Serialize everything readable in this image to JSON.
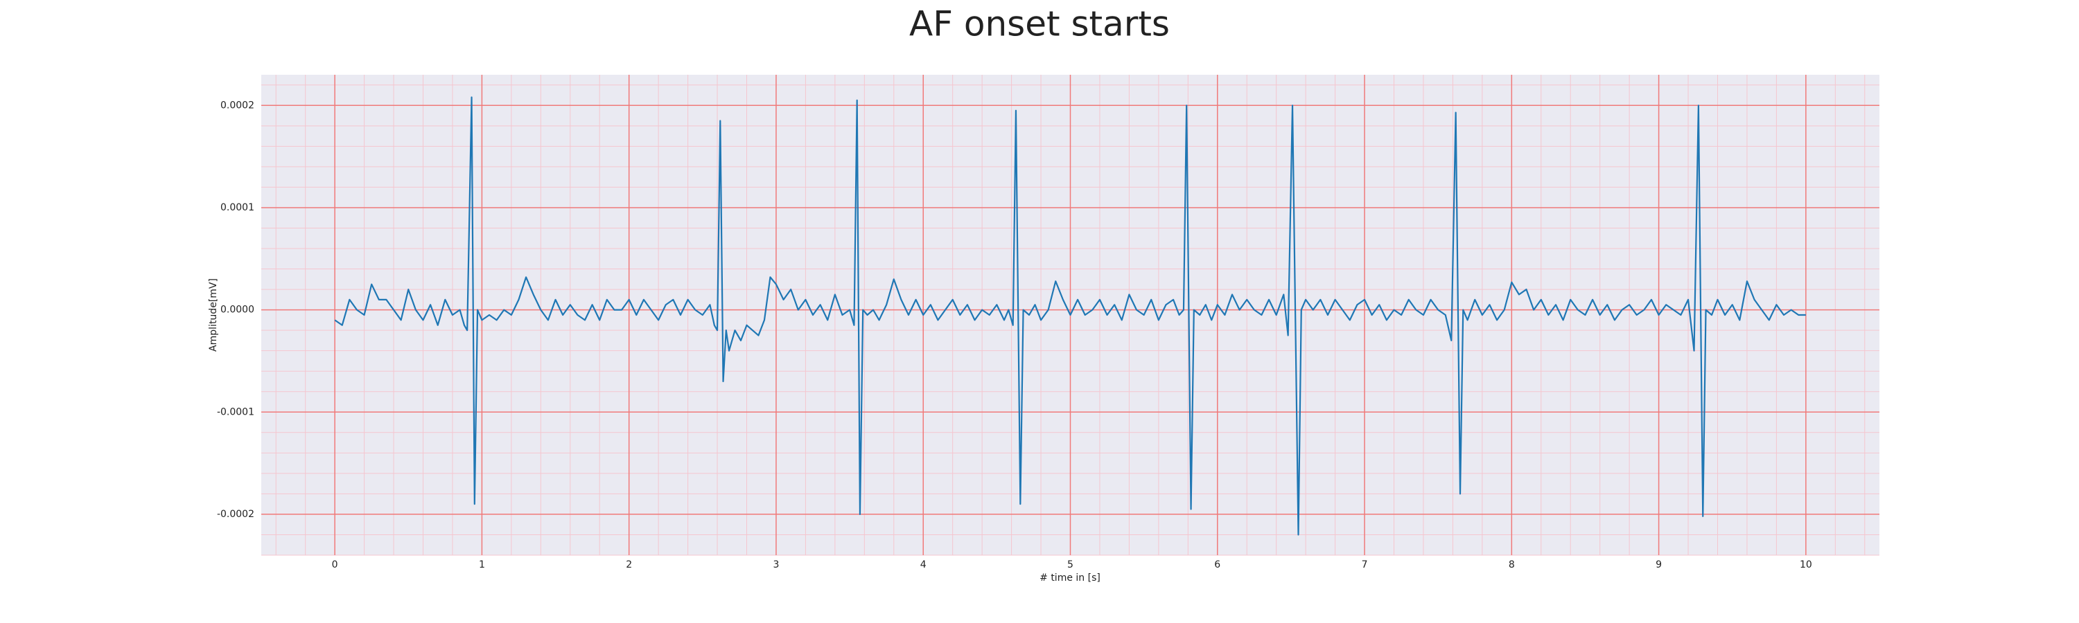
{
  "chart_data": {
    "type": "line",
    "title": "AF onset starts",
    "xlabel": "# time in [s]",
    "ylabel": "Amplitude[mV]",
    "color": "#1f77b4",
    "xlim": [
      -0.5,
      10.5
    ],
    "ylim": [
      -0.00024,
      0.00023
    ],
    "xticks": [
      0,
      1,
      2,
      3,
      4,
      5,
      6,
      7,
      8,
      9,
      10
    ],
    "yticks": [
      -0.0002,
      -0.0001,
      {
        "value": 0,
        "label": "0.0000"
      },
      0.0001,
      0.0002
    ],
    "grid": true,
    "minor_grid": true,
    "xminor_step": 0.2,
    "yminor_step": 2e-05,
    "x": [
      0.0,
      0.05,
      0.1,
      0.15,
      0.2,
      0.25,
      0.3,
      0.35,
      0.4,
      0.45,
      0.5,
      0.55,
      0.6,
      0.65,
      0.7,
      0.75,
      0.8,
      0.85,
      0.88,
      0.9,
      0.93,
      0.95,
      0.97,
      1.0,
      1.05,
      1.1,
      1.15,
      1.2,
      1.25,
      1.3,
      1.35,
      1.4,
      1.45,
      1.5,
      1.55,
      1.6,
      1.65,
      1.7,
      1.75,
      1.8,
      1.85,
      1.9,
      1.95,
      2.0,
      2.05,
      2.1,
      2.15,
      2.2,
      2.25,
      2.3,
      2.35,
      2.4,
      2.45,
      2.5,
      2.55,
      2.58,
      2.6,
      2.62,
      2.64,
      2.66,
      2.68,
      2.72,
      2.76,
      2.8,
      2.84,
      2.88,
      2.92,
      2.96,
      3.0,
      3.05,
      3.1,
      3.15,
      3.2,
      3.25,
      3.3,
      3.35,
      3.4,
      3.45,
      3.5,
      3.53,
      3.55,
      3.57,
      3.59,
      3.62,
      3.66,
      3.7,
      3.75,
      3.8,
      3.85,
      3.9,
      3.95,
      4.0,
      4.05,
      4.1,
      4.15,
      4.2,
      4.25,
      4.3,
      4.35,
      4.4,
      4.45,
      4.5,
      4.55,
      4.58,
      4.61,
      4.63,
      4.66,
      4.68,
      4.72,
      4.76,
      4.8,
      4.85,
      4.9,
      4.95,
      5.0,
      5.05,
      5.1,
      5.15,
      5.2,
      5.25,
      5.3,
      5.35,
      5.4,
      5.45,
      5.5,
      5.55,
      5.6,
      5.65,
      5.7,
      5.74,
      5.77,
      5.79,
      5.82,
      5.84,
      5.88,
      5.92,
      5.96,
      6.0,
      6.05,
      6.1,
      6.15,
      6.2,
      6.25,
      6.3,
      6.35,
      6.4,
      6.45,
      6.48,
      6.51,
      6.55,
      6.57,
      6.6,
      6.65,
      6.7,
      6.75,
      6.8,
      6.85,
      6.9,
      6.95,
      7.0,
      7.05,
      7.1,
      7.15,
      7.2,
      7.25,
      7.3,
      7.35,
      7.4,
      7.45,
      7.5,
      7.55,
      7.59,
      7.62,
      7.65,
      7.67,
      7.7,
      7.75,
      7.8,
      7.85,
      7.9,
      7.95,
      8.0,
      8.05,
      8.1,
      8.15,
      8.2,
      8.25,
      8.3,
      8.35,
      8.4,
      8.45,
      8.5,
      8.55,
      8.6,
      8.65,
      8.7,
      8.75,
      8.8,
      8.85,
      8.9,
      8.95,
      9.0,
      9.05,
      9.1,
      9.15,
      9.2,
      9.24,
      9.27,
      9.3,
      9.32,
      9.36,
      9.4,
      9.45,
      9.5,
      9.55,
      9.6,
      9.65,
      9.7,
      9.75,
      9.8,
      9.85,
      9.9,
      9.95,
      10.0
    ],
    "values": [
      -1e-05,
      -1.5e-05,
      1e-05,
      0,
      -5e-06,
      2.5e-05,
      1e-05,
      1e-05,
      0,
      -1e-05,
      2e-05,
      0,
      -1e-05,
      5e-06,
      -1.5e-05,
      1e-05,
      -5e-06,
      0,
      -1.5e-05,
      -2e-05,
      0.000208,
      -0.00019,
      0,
      -1e-05,
      -5e-06,
      -1e-05,
      0,
      -5e-06,
      1e-05,
      3.2e-05,
      1.5e-05,
      0,
      -1e-05,
      1e-05,
      -5e-06,
      5e-06,
      -5e-06,
      -1e-05,
      5e-06,
      -1e-05,
      1e-05,
      0,
      0,
      1e-05,
      -5e-06,
      1e-05,
      0,
      -1e-05,
      5e-06,
      1e-05,
      -5e-06,
      1e-05,
      0,
      -5e-06,
      5e-06,
      -1.5e-05,
      -2e-05,
      0.000185,
      -7e-05,
      -2e-05,
      -4e-05,
      -2e-05,
      -3e-05,
      -1.5e-05,
      -2e-05,
      -2.5e-05,
      -1e-05,
      3.2e-05,
      2.5e-05,
      1e-05,
      2e-05,
      0,
      1e-05,
      -5e-06,
      5e-06,
      -1e-05,
      1.5e-05,
      -5e-06,
      0,
      -1.5e-05,
      0.000205,
      -0.0002,
      0,
      -5e-06,
      0,
      -1e-05,
      5e-06,
      3e-05,
      1e-05,
      -5e-06,
      1e-05,
      -5e-06,
      5e-06,
      -1e-05,
      0,
      1e-05,
      -5e-06,
      5e-06,
      -1e-05,
      0,
      -5e-06,
      5e-06,
      -1e-05,
      0,
      -1.5e-05,
      0.000195,
      -0.00019,
      0,
      -5e-06,
      5e-06,
      -1e-05,
      0,
      2.8e-05,
      1e-05,
      -5e-06,
      1e-05,
      -5e-06,
      0,
      1e-05,
      -5e-06,
      5e-06,
      -1e-05,
      1.5e-05,
      0,
      -5e-06,
      1e-05,
      -1e-05,
      5e-06,
      1e-05,
      -5e-06,
      0,
      0.0002,
      -0.000195,
      0,
      -5e-06,
      5e-06,
      -1e-05,
      5e-06,
      -5e-06,
      1.5e-05,
      0,
      1e-05,
      0,
      -5e-06,
      1e-05,
      -5e-06,
      1.5e-05,
      -2.5e-05,
      0.0002,
      -0.00022,
      0,
      1e-05,
      0,
      1e-05,
      -5e-06,
      1e-05,
      0,
      -1e-05,
      5e-06,
      1e-05,
      -5e-06,
      5e-06,
      -1e-05,
      0,
      -5e-06,
      1e-05,
      0,
      -5e-06,
      1e-05,
      0,
      -5e-06,
      -3e-05,
      0.000193,
      -0.00018,
      0,
      -1e-05,
      1e-05,
      -5e-06,
      5e-06,
      -1e-05,
      0,
      2.7e-05,
      1.5e-05,
      2e-05,
      0,
      1e-05,
      -5e-06,
      5e-06,
      -1e-05,
      1e-05,
      0,
      -5e-06,
      1e-05,
      -5e-06,
      5e-06,
      -1e-05,
      0,
      5e-06,
      -5e-06,
      0,
      1e-05,
      -5e-06,
      5e-06,
      0,
      -5e-06,
      1e-05,
      -4e-05,
      0.0002,
      -0.000202,
      0,
      -5e-06,
      1e-05,
      -5e-06,
      5e-06,
      -1e-05,
      2.8e-05,
      1e-05,
      0,
      -1e-05,
      5e-06,
      -5e-06,
      0,
      -5e-06,
      -5e-06
    ]
  }
}
